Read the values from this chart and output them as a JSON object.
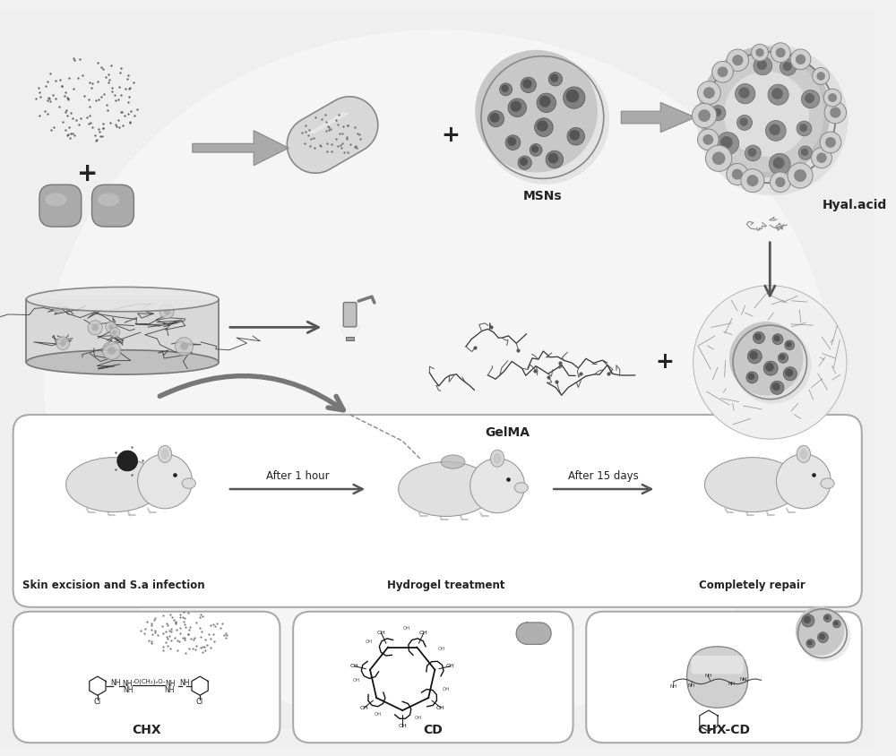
{
  "background_color": "#f0f0f0",
  "panel_bg": "#ffffff",
  "white": "#ffffff",
  "dark_gray": "#555555",
  "mid_gray": "#888888",
  "light_gray": "#cccccc",
  "very_light_gray": "#e8e8e8",
  "text_color": "#222222",
  "label_fontsize": 10,
  "small_fontsize": 8,
  "labels": {
    "msns": "MSNs",
    "hyal_acid": "Hyal.acid",
    "gelma": "GelMA",
    "chx": "CHX",
    "cd": "CD",
    "chx_cd": "CHX-CD",
    "skin_excision": "Skin excision and S.a infection",
    "hydrogel": "Hydrogel treatment",
    "completely": "Completely repair",
    "after1h": "After 1 hour",
    "after15d": "After 15 days"
  },
  "figsize": [
    10.0,
    8.44
  ],
  "dpi": 100
}
